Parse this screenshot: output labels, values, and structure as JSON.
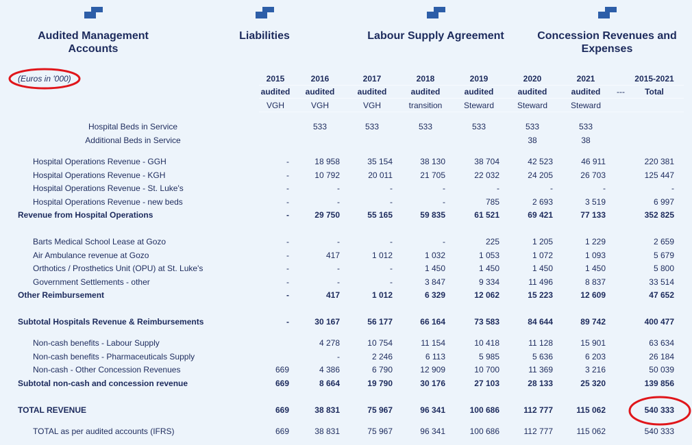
{
  "tabs": [
    {
      "label": "Audited Management Accounts"
    },
    {
      "label": "Liabilities"
    },
    {
      "label": "Labour Supply Agreement"
    },
    {
      "label": "Concession Revenues and Expenses"
    }
  ],
  "note": "(Euros in '000)",
  "header": {
    "years": [
      "2015",
      "2016",
      "2017",
      "2018",
      "2019",
      "2020",
      "2021",
      "2015-2021"
    ],
    "status": [
      "audited",
      "audited",
      "audited",
      "audited",
      "audited",
      "audited",
      "audited",
      "Total"
    ],
    "separator": "---",
    "operator": [
      "VGH",
      "VGH",
      "VGH",
      "transition",
      "Steward",
      "Steward",
      "Steward"
    ]
  },
  "beds": [
    {
      "label": "Hospital Beds in Service",
      "values": [
        null,
        "533",
        "533",
        "533",
        "533",
        "533",
        "533",
        null
      ]
    },
    {
      "label": "Additional Beds in Service",
      "values": [
        null,
        null,
        null,
        null,
        null,
        "38",
        "38",
        null
      ]
    }
  ],
  "rows": [
    {
      "label": "Hospital Operations Revenue - GGH",
      "bold": false,
      "values": [
        "-",
        "18 958",
        "35 154",
        "38 130",
        "38 704",
        "42 523",
        "46 911",
        "220 381"
      ]
    },
    {
      "label": "Hospital Operations Revenue - KGH",
      "bold": false,
      "values": [
        "-",
        "10 792",
        "20 011",
        "21 705",
        "22 032",
        "24 205",
        "26 703",
        "125 447"
      ]
    },
    {
      "label": "Hospital Operations Revenue - St. Luke's",
      "bold": false,
      "values": [
        "-",
        "-",
        "-",
        "-",
        "-",
        "-",
        "-",
        "-"
      ]
    },
    {
      "label": "Hospital Operations Revenue - new beds",
      "bold": false,
      "values": [
        "-",
        "-",
        "-",
        "-",
        "785",
        "2 693",
        "3 519",
        "6 997"
      ]
    },
    {
      "label": "Revenue from Hospital Operations",
      "bold": true,
      "values": [
        "-",
        "29 750",
        "55 165",
        "59 835",
        "61 521",
        "69 421",
        "77 133",
        "352 825"
      ]
    },
    {
      "label": "Barts Medical School Lease at Gozo",
      "bold": false,
      "values": [
        "-",
        "-",
        "-",
        "-",
        "225",
        "1 205",
        "1 229",
        "2 659"
      ]
    },
    {
      "label": "Air Ambulance revenue at Gozo",
      "bold": false,
      "values": [
        "-",
        "417",
        "1 012",
        "1 032",
        "1 053",
        "1 072",
        "1 093",
        "5 679"
      ]
    },
    {
      "label": "Orthotics / Prosthetics Unit (OPU) at St. Luke's",
      "bold": false,
      "values": [
        "-",
        "-",
        "-",
        "1 450",
        "1 450",
        "1 450",
        "1 450",
        "5 800"
      ]
    },
    {
      "label": "Government Settlements - other",
      "bold": false,
      "values": [
        "-",
        "-",
        "-",
        "3 847",
        "9 334",
        "11 496",
        "8 837",
        "33 514"
      ]
    },
    {
      "label": "Other Reimbursement",
      "bold": true,
      "values": [
        "-",
        "417",
        "1 012",
        "6 329",
        "12 062",
        "15 223",
        "12 609",
        "47 652"
      ]
    },
    {
      "label": "Subtotal Hospitals Revenue & Reimbursements",
      "bold": true,
      "values": [
        "-",
        "30 167",
        "56 177",
        "66 164",
        "73 583",
        "84 644",
        "89 742",
        "400 477"
      ]
    },
    {
      "label": "Non-cash benefits - Labour Supply",
      "bold": false,
      "values": [
        null,
        "4 278",
        "10 754",
        "11 154",
        "10 418",
        "11 128",
        "15 901",
        "63 634"
      ]
    },
    {
      "label": "Non-cash benefits - Pharmaceuticals Supply",
      "bold": false,
      "values": [
        null,
        "-",
        "2 246",
        "6 113",
        "5 985",
        "5 636",
        "6 203",
        "26 184"
      ]
    },
    {
      "label": "Non-cash - Other Concession Revenues",
      "bold": false,
      "values": [
        "669",
        "4 386",
        "6 790",
        "12 909",
        "10 700",
        "11 369",
        "3 216",
        "50 039"
      ]
    },
    {
      "label": "Subtotal non-cash and concession revenue",
      "bold": true,
      "values": [
        "669",
        "8 664",
        "19 790",
        "30 176",
        "27 103",
        "28 133",
        "25 320",
        "139 856"
      ]
    },
    {
      "label": "TOTAL REVENUE",
      "bold": true,
      "values": [
        "669",
        "38 831",
        "75 967",
        "96 341",
        "100 686",
        "112 777",
        "115 062",
        "540 333"
      ]
    },
    {
      "label": "TOTAL as per audited accounts (IFRS)",
      "bold": false,
      "values": [
        "669",
        "38 831",
        "75 967",
        "96 341",
        "100 686",
        "112 777",
        "115 062",
        "540 333"
      ]
    }
  ]
}
